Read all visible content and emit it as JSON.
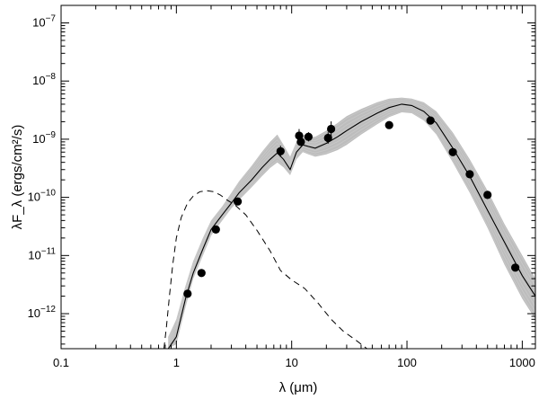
{
  "chart_data": {
    "type": "scatter",
    "xscale": "log",
    "yscale": "log",
    "xlim": [
      0.1,
      1300
    ],
    "ylim": [
      2.5e-13,
      2e-07
    ],
    "xlabel": "λ (μm)",
    "ylabel": "λF_λ (ergs/cm²/s)",
    "grid": false,
    "legend": "none",
    "x_ticks": [
      {
        "value": 0.1,
        "label": "0.1"
      },
      {
        "value": 1,
        "label": "1"
      },
      {
        "value": 10,
        "label": "10"
      },
      {
        "value": 100,
        "label": "100"
      },
      {
        "value": 1000,
        "label": "1000"
      }
    ],
    "y_ticks": [
      {
        "value": 1e-12,
        "base": "10",
        "exp": "−12"
      },
      {
        "value": 1e-11,
        "base": "10",
        "exp": "−11"
      },
      {
        "value": 1e-10,
        "base": "10",
        "exp": "−10"
      },
      {
        "value": 1e-09,
        "base": "10",
        "exp": "−9"
      },
      {
        "value": 1e-08,
        "base": "10",
        "exp": "−8"
      },
      {
        "value": 1e-07,
        "base": "10",
        "exp": "−7"
      }
    ],
    "series": [
      {
        "kind": "points",
        "x": [
          1.25,
          1.65,
          2.2,
          3.4,
          8.0,
          11.6,
          12.0,
          14.0,
          20.7,
          22.0,
          70,
          160,
          250,
          350,
          500,
          870
        ],
        "y": [
          2.2e-12,
          5e-12,
          2.8e-11,
          8.5e-11,
          6.2e-10,
          1.15e-09,
          9e-10,
          1.1e-09,
          1.05e-09,
          1.5e-09,
          1.75e-09,
          2.1e-09,
          6e-10,
          2.5e-10,
          1.1e-10,
          6.2e-12
        ],
        "yerr_up": [
          0,
          0,
          0,
          0,
          0.25,
          0.3,
          0,
          0.2,
          0.25,
          0.35,
          0,
          0,
          0,
          0,
          0,
          0
        ],
        "color": "#000000"
      },
      {
        "kind": "best-fit-line",
        "x": [
          0.85,
          1.0,
          1.2,
          1.4,
          1.7,
          2.0,
          2.5,
          3.0,
          3.5,
          4.5,
          5.5,
          6.5,
          7.5,
          8.5,
          9.7,
          11.0,
          12.5,
          14.0,
          16.0,
          20.0,
          25.0,
          30.0,
          40.0,
          55.0,
          70.0,
          90.0,
          110.0,
          140.0,
          180.0,
          250.0,
          350.0,
          500.0,
          700.0,
          1000.0,
          1300.0
        ],
        "y": [
          2.5e-13,
          4e-13,
          1.8e-12,
          5e-12,
          1.3e-11,
          2.8e-11,
          5e-11,
          8e-11,
          1.2e-10,
          2e-10,
          3.2e-10,
          4.5e-10,
          5.8e-10,
          4.5e-10,
          3e-10,
          6e-10,
          8e-10,
          7.5e-10,
          7e-10,
          8.5e-10,
          1.1e-09,
          1.4e-09,
          2e-09,
          2.8e-09,
          3.5e-09,
          4e-09,
          3.8e-09,
          3e-09,
          1.9e-09,
          7e-10,
          2.3e-10,
          6e-11,
          1.7e-11,
          4.5e-12,
          2e-12
        ],
        "color": "#000000"
      },
      {
        "kind": "photosphere-dashed",
        "x": [
          0.78,
          0.82,
          0.87,
          0.93,
          1.0,
          1.1,
          1.25,
          1.4,
          1.6,
          1.85,
          2.1,
          2.4,
          2.8,
          3.2,
          4.0,
          5.0,
          6.5,
          8.0,
          10.0,
          13.0,
          17.0,
          22.0,
          28.0,
          36.0,
          45.0
        ],
        "y": [
          2.5e-13,
          6e-13,
          2e-12,
          7e-12,
          2e-11,
          4.5e-11,
          8e-11,
          1.05e-10,
          1.25e-10,
          1.3e-10,
          1.25e-10,
          1.1e-10,
          8.8e-11,
          7.5e-11,
          5e-11,
          2.7e-11,
          1.2e-11,
          5.5e-12,
          3.8e-12,
          2.7e-12,
          1.5e-12,
          8e-13,
          5e-13,
          3.5e-13,
          2.5e-13
        ],
        "color": "#000000"
      },
      {
        "kind": "model-grid-band",
        "x": [
          0.85,
          1.0,
          1.2,
          1.4,
          1.7,
          2.0,
          2.5,
          3.0,
          3.5,
          4.5,
          5.5,
          6.5,
          7.5,
          8.5,
          9.7,
          11.0,
          12.5,
          14.0,
          16.0,
          20.0,
          25.0,
          30.0,
          40.0,
          55.0,
          70.0,
          90.0,
          110.0,
          140.0,
          180.0,
          250.0,
          350.0,
          500.0,
          700.0,
          1000.0,
          1300.0
        ],
        "y_low": [
          2.5e-13,
          3e-13,
          1.3e-12,
          4e-12,
          1e-11,
          2.2e-11,
          4e-11,
          6.5e-11,
          9e-11,
          1.5e-10,
          2.3e-10,
          3.2e-10,
          4e-10,
          3.3e-10,
          2.4e-10,
          4.5e-10,
          6e-10,
          5.5e-10,
          5e-10,
          5.5e-10,
          6.5e-10,
          8e-10,
          1.2e-09,
          1.8e-09,
          2.4e-09,
          2.9e-09,
          2.8e-09,
          2.1e-09,
          1.2e-09,
          4e-10,
          1.2e-10,
          3e-11,
          7e-12,
          1.8e-12,
          8e-13
        ],
        "y_high": [
          4e-13,
          8e-13,
          3e-12,
          8e-12,
          2e-11,
          4e-11,
          7e-11,
          1.2e-10,
          1.9e-10,
          3.5e-10,
          6e-10,
          9e-10,
          1.2e-09,
          8e-10,
          5e-10,
          9e-10,
          1.2e-09,
          1.1e-09,
          1.1e-09,
          1.4e-09,
          1.9e-09,
          2.5e-09,
          3.3e-09,
          4.3e-09,
          5e-09,
          5.2e-09,
          5e-09,
          4.3e-09,
          3e-09,
          1.3e-09,
          4.5e-10,
          1.3e-10,
          3.5e-11,
          1e-11,
          4e-12
        ],
        "color": "#bdbdbd"
      }
    ]
  }
}
